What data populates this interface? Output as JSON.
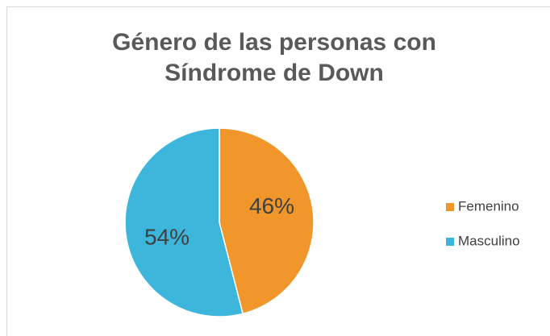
{
  "chart_data": {
    "type": "pie",
    "title": "Género de las personas con Síndrome de Down",
    "categories": [
      "Femenino",
      "Masculino"
    ],
    "values": [
      46,
      54
    ],
    "value_labels": [
      "46%",
      "54%"
    ],
    "colors": [
      "#f0962a",
      "#3db6dc"
    ],
    "legend": "right"
  }
}
